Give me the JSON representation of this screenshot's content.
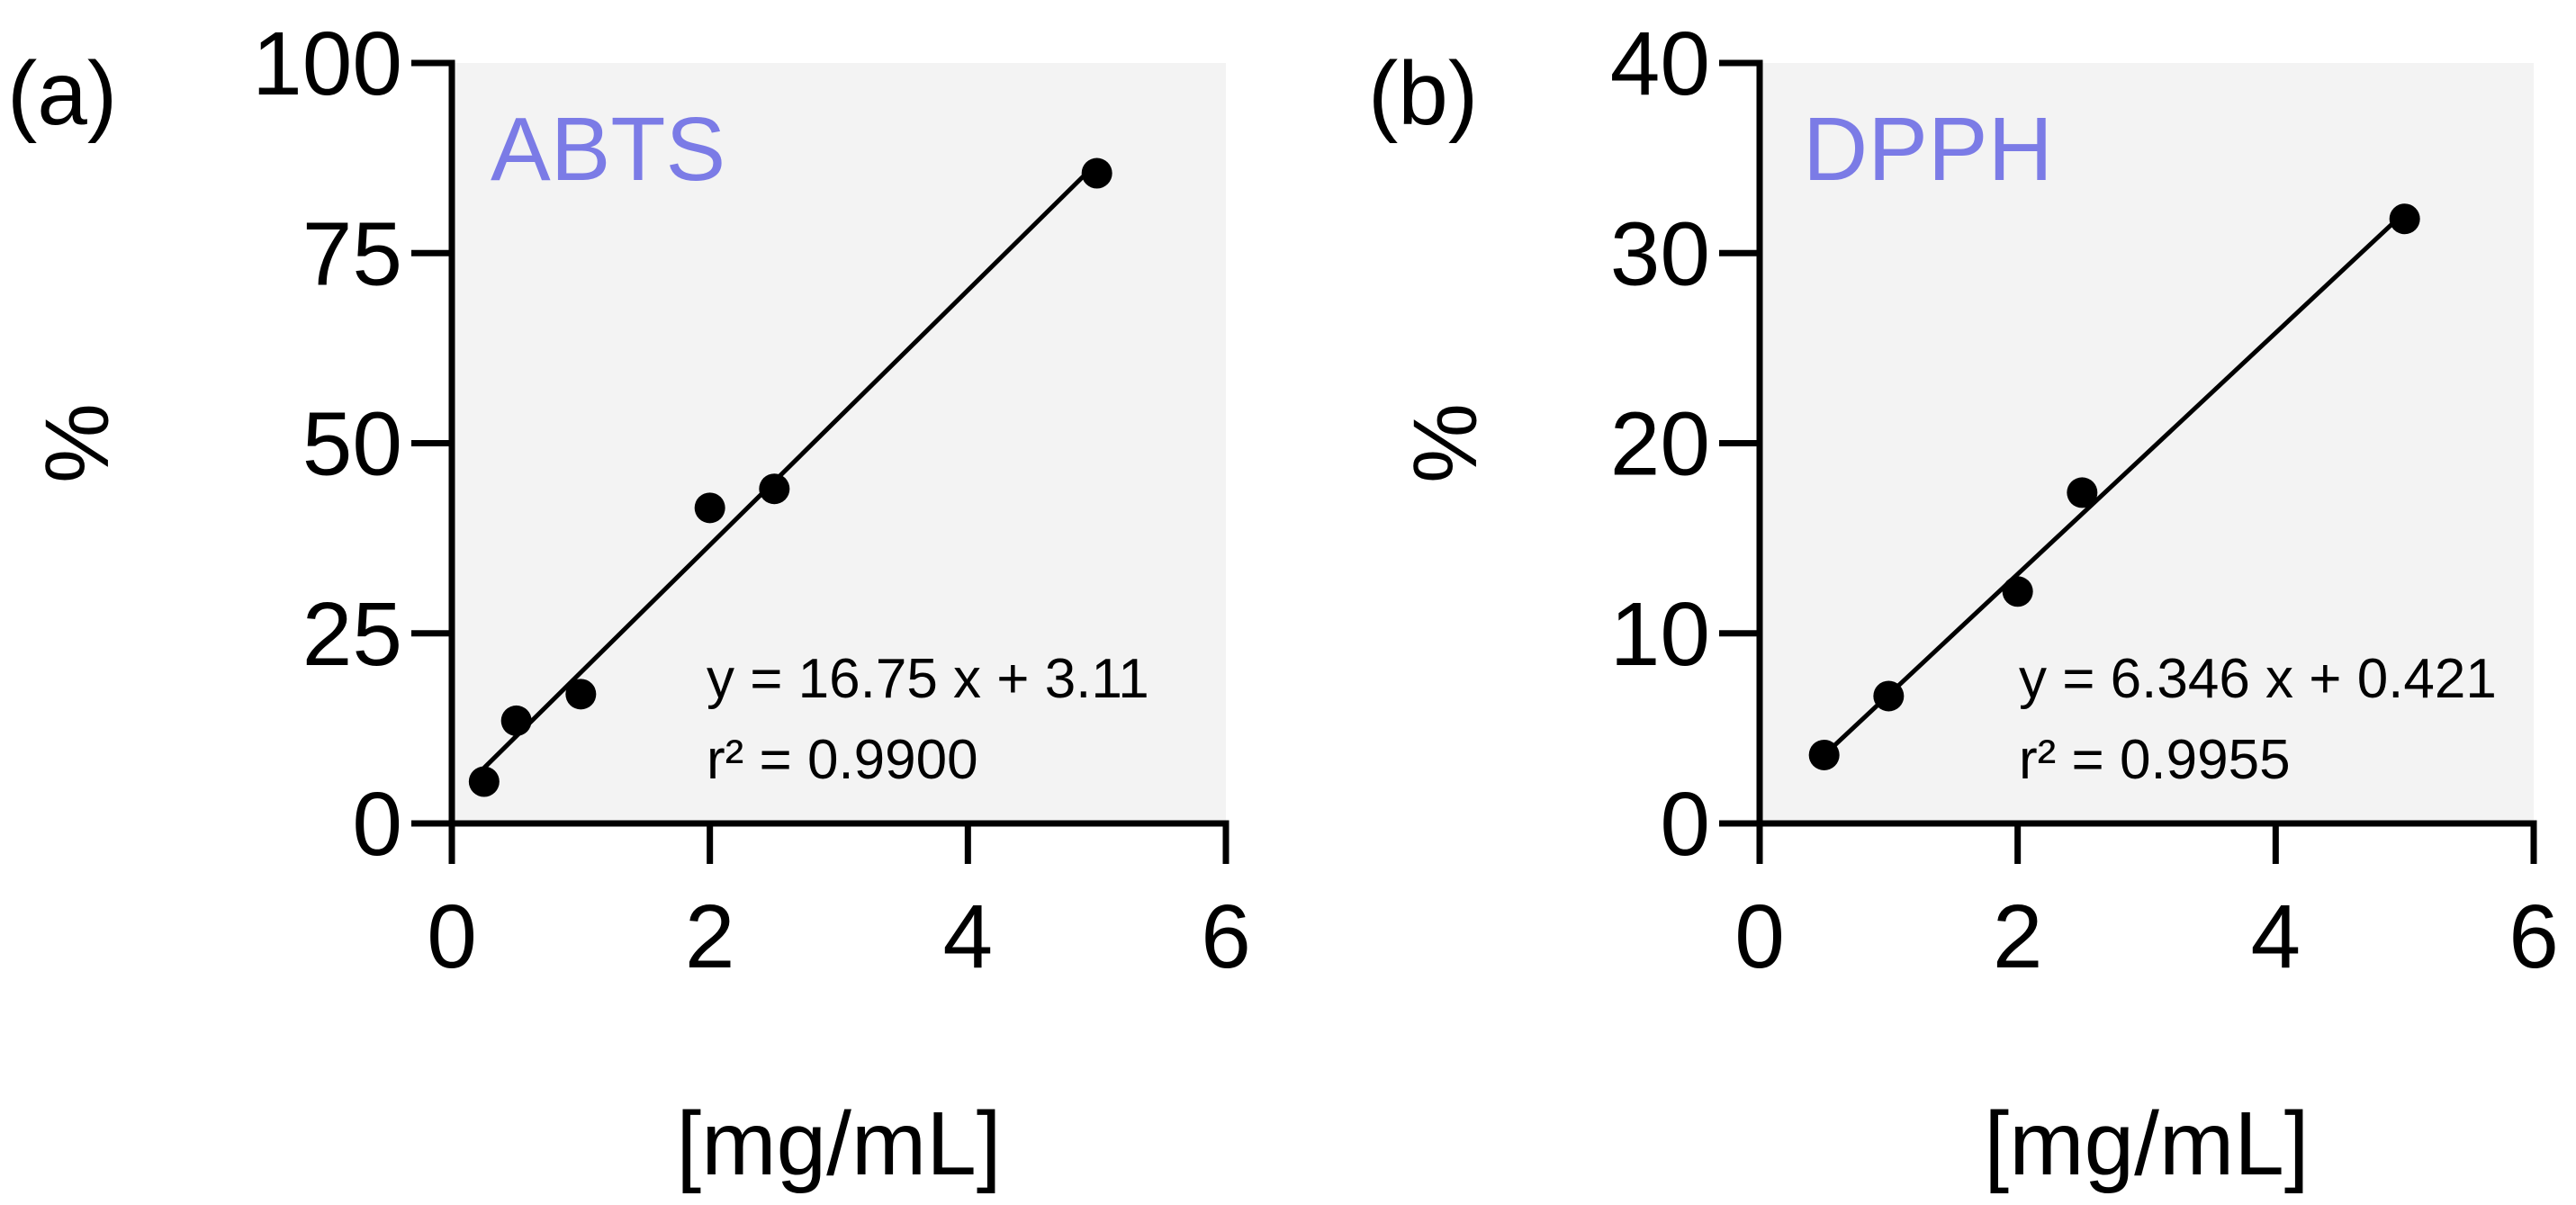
{
  "chart_data": [
    {
      "type": "scatter",
      "panel_label": "(a)",
      "title": "ABTS",
      "title_color": "#7b7be6",
      "plot_background": "#f3f3f3",
      "xlabel": "[mg/mL]",
      "ylabel": "%",
      "xlim": [
        0,
        6
      ],
      "ylim": [
        0,
        100
      ],
      "x_ticks": [
        0,
        2,
        4,
        6
      ],
      "y_ticks": [
        0,
        25,
        50,
        75,
        100
      ],
      "grid": false,
      "x": [
        0.25,
        0.5,
        1.0,
        2.0,
        2.5,
        5.0
      ],
      "y": [
        5.5,
        13.5,
        17.0,
        41.5,
        44.0,
        85.5
      ],
      "fit": {
        "slope": 16.75,
        "intercept": 3.11,
        "x_range": [
          0.25,
          5.0
        ]
      },
      "equation": "y = 16.75 x + 3.11",
      "r_squared": "r² = 0.9900"
    },
    {
      "type": "scatter",
      "panel_label": "(b)",
      "title": "DPPH",
      "title_color": "#7b7be6",
      "plot_background": "#f3f3f3",
      "xlabel": "[mg/mL]",
      "ylabel": "%",
      "xlim": [
        0,
        6
      ],
      "ylim": [
        0,
        40
      ],
      "x_ticks": [
        0,
        2,
        4,
        6
      ],
      "y_ticks": [
        0,
        10,
        20,
        30,
        40
      ],
      "grid": false,
      "x": [
        0.5,
        1.0,
        2.0,
        2.5,
        5.0
      ],
      "y": [
        3.6,
        6.7,
        12.2,
        17.4,
        31.8
      ],
      "fit": {
        "slope": 6.346,
        "intercept": 0.421,
        "x_range": [
          0.5,
          5.0
        ]
      },
      "equation": "y = 6.346 x + 0.421",
      "r_squared": "r² = 0.9955"
    }
  ]
}
